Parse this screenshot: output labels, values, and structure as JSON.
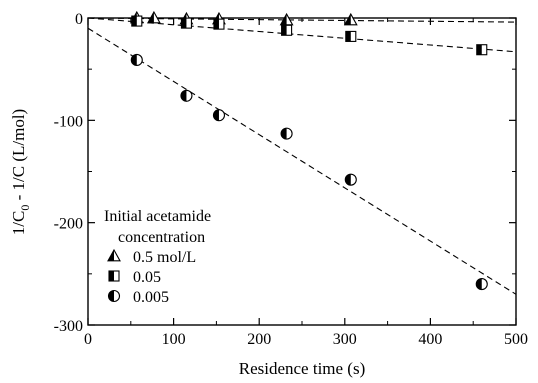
{
  "chart_data": {
    "type": "scatter",
    "xlabel": "Residence time (s)",
    "ylabel": {
      "main": "1/C",
      "sub": "0",
      "rest": " - 1/C (L/mol)"
    },
    "xlim": [
      0,
      500
    ],
    "ylim": [
      -300,
      0
    ],
    "x_ticks": [
      0,
      100,
      200,
      300,
      400,
      500
    ],
    "y_ticks": [
      0,
      -100,
      -200,
      -300
    ],
    "grid": false,
    "legend": {
      "placement": "bottom-left",
      "title_line1": "Initial acetamide",
      "title_line2": "concentration",
      "entries": [
        "0.5 mol/L",
        "0.05",
        "0.005"
      ]
    },
    "series": [
      {
        "name": "0.5 mol/L",
        "marker": "half-filled-triangle",
        "x": [
          57,
          77,
          115,
          153,
          232,
          307
        ],
        "y": [
          0,
          0,
          -1,
          -1,
          -2,
          -2
        ],
        "fit": {
          "x": [
            0,
            500
          ],
          "y": [
            0,
            -4
          ]
        }
      },
      {
        "name": "0.05",
        "marker": "half-filled-square",
        "x": [
          57,
          115,
          153,
          232,
          307,
          460
        ],
        "y": [
          -3,
          -5,
          -6,
          -12,
          -18,
          -31
        ],
        "fit": {
          "x": [
            0,
            500
          ],
          "y": [
            0,
            -33
          ]
        }
      },
      {
        "name": "0.005",
        "marker": "half-filled-circle",
        "x": [
          57,
          115,
          153,
          232,
          307,
          460
        ],
        "y": [
          -41,
          -76,
          -95,
          -113,
          -158,
          -260
        ],
        "fit": {
          "x": [
            0,
            500
          ],
          "y": [
            -10,
            -270
          ]
        }
      }
    ]
  }
}
